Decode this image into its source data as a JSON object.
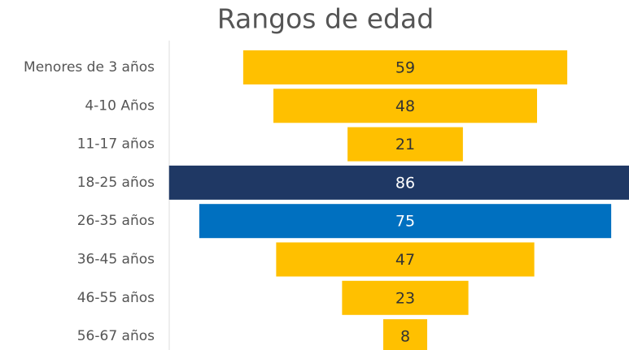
{
  "chart_data": {
    "type": "funnel",
    "title": "Rangos de edad",
    "categories": [
      "Menores de 3 años",
      "4-10 Años",
      "11-17 años",
      "18-25 años",
      "26-35 años",
      "36-45 años",
      "46-55 años",
      "56-67 años"
    ],
    "values": [
      59,
      48,
      21,
      86,
      75,
      47,
      23,
      8
    ],
    "colors": [
      "#FFC000",
      "#FFC000",
      "#FFC000",
      "#1F3864",
      "#0070C0",
      "#FFC000",
      "#FFC000",
      "#FFC000"
    ]
  }
}
